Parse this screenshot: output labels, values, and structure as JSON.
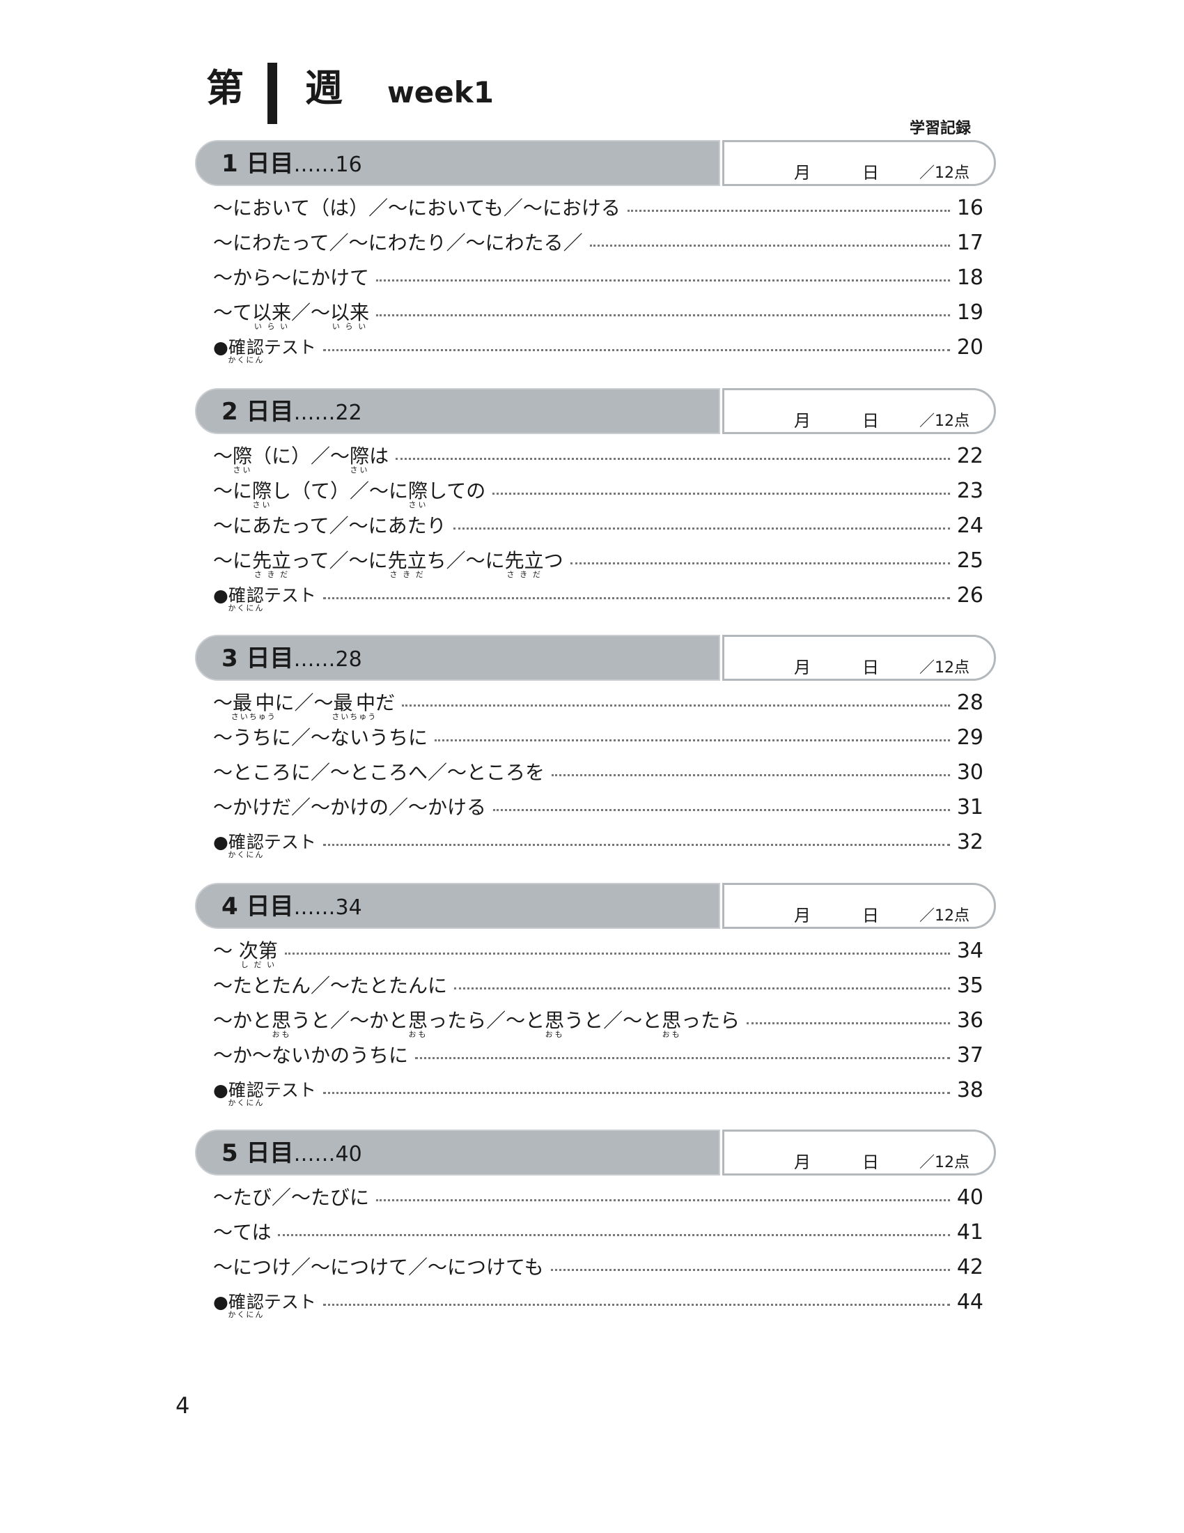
{
  "header": {
    "title_prefix": "第",
    "title_suffix": "週",
    "week_label": "week1",
    "record_label": "学習記録"
  },
  "record_box": {
    "month": "月",
    "day": "日",
    "score": "／12点"
  },
  "sections": [
    {
      "day": "1 日目",
      "leader": "……",
      "page": "16",
      "rows": [
        {
          "text": "〜において（は）／〜においても／〜における",
          "page": "16"
        },
        {
          "text": "〜にわたって／〜にわたり／〜にわたる／",
          "page": "17"
        },
        {
          "text": "〜から〜にかけて",
          "page": "18"
        },
        {
          "text": "〜て{以来|いらい}／〜{以来|いらい}",
          "page": "19"
        },
        {
          "text": "●{確認|かくにん}テスト",
          "page": "20",
          "test": true
        }
      ]
    },
    {
      "day": "2 日目",
      "leader": "……",
      "page": "22",
      "rows": [
        {
          "text": "〜{際|さい}（に）／〜{際|さい}は",
          "page": "22"
        },
        {
          "text": "〜に{際|さい}し（て）／〜に{際|さい}しての",
          "page": "23"
        },
        {
          "text": "〜にあたって／〜にあたり",
          "page": "24"
        },
        {
          "text": "〜に{先立|さきだ}って／〜に{先立|さきだ}ち／〜に{先立|さきだ}つ",
          "page": "25"
        },
        {
          "text": "●{確認|かくにん}テスト",
          "page": "26",
          "test": true
        }
      ]
    },
    {
      "day": "3 日目",
      "leader": "……",
      "page": "28",
      "rows": [
        {
          "text": "〜{最中|さいちゅう}に／〜{最中|さいちゅう}だ",
          "page": "28"
        },
        {
          "text": "〜うちに／〜ないうちに",
          "page": "29"
        },
        {
          "text": "〜ところに／〜ところへ／〜ところを",
          "page": "30"
        },
        {
          "text": "〜かけだ／〜かけの／〜かける",
          "page": "31"
        },
        {
          "text": "●{確認|かくにん}テスト",
          "page": "32",
          "test": true
        }
      ]
    },
    {
      "day": "4 日目",
      "leader": "……",
      "page": "34",
      "rows": [
        {
          "text": "〜 {次第|しだい}",
          "page": "34"
        },
        {
          "text": "〜たとたん／〜たとたんに",
          "page": "35"
        },
        {
          "text": "〜かと{思|おも}うと／〜かと{思|おも}ったら／〜と{思|おも}うと／〜と{思|おも}ったら",
          "page": "36"
        },
        {
          "text": "〜か〜ないかのうちに",
          "page": "37"
        },
        {
          "text": "●{確認|かくにん}テスト",
          "page": "38",
          "test": true
        }
      ]
    },
    {
      "day": "5 日目",
      "leader": "……",
      "page": "40",
      "rows": [
        {
          "text": "〜たび／〜たびに",
          "page": "40"
        },
        {
          "text": "〜ては",
          "page": "41"
        },
        {
          "text": "〜につけ／〜につけて／〜につけても",
          "page": "42"
        },
        {
          "text": "●{確認|かくにん}テスト",
          "page": "44",
          "test": true
        }
      ]
    }
  ],
  "page_number": "4"
}
